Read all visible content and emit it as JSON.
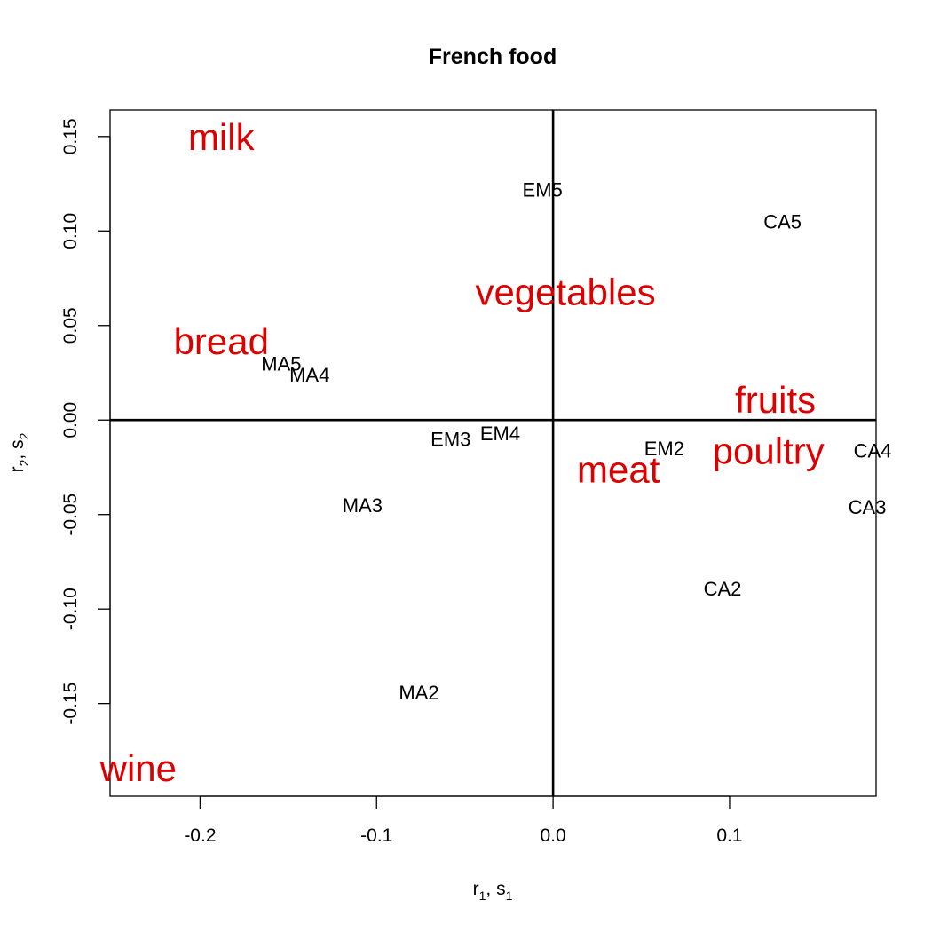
{
  "chart_data": {
    "type": "scatter",
    "title": "French food",
    "xlabel": {
      "r": "r",
      "r_sub": "1",
      "sep": ", ",
      "s": "s",
      "s_sub": "1"
    },
    "ylabel": {
      "r": "r",
      "r_sub": "2",
      "sep": ", ",
      "s": "s",
      "s_sub": "2"
    },
    "xlim": [
      -0.251,
      0.183
    ],
    "ylim": [
      -0.199,
      0.164
    ],
    "x_ticks": [
      -0.2,
      -0.1,
      0.0,
      0.1
    ],
    "x_tick_labels": [
      "-0.2",
      "-0.1",
      "0.0",
      "0.1"
    ],
    "y_ticks": [
      -0.15,
      -0.1,
      -0.05,
      0.0,
      0.05,
      0.1,
      0.15
    ],
    "y_tick_labels": [
      "-0.15",
      "-0.10",
      "-0.05",
      "0.00",
      "0.05",
      "0.10",
      "0.15"
    ],
    "grid": false,
    "reference_lines": {
      "x": 0,
      "y": 0
    },
    "colors": {
      "rows": "#000000",
      "columns": "#dd0000",
      "axes": "#000000"
    },
    "series": [
      {
        "name": "",
        "points": [
          {
            "label": "EM5",
            "x": -0.006,
            "y": 0.122
          },
          {
            "label": "CA5",
            "x": 0.13,
            "y": 0.105
          },
          {
            "label": "MA5",
            "x": -0.154,
            "y": 0.03
          },
          {
            "label": "MA4",
            "x": -0.138,
            "y": 0.024
          },
          {
            "label": "EM3",
            "x": -0.058,
            "y": -0.01
          },
          {
            "label": "EM4",
            "x": -0.03,
            "y": -0.007
          },
          {
            "label": "EM2",
            "x": 0.063,
            "y": -0.015
          },
          {
            "label": "CA4",
            "x": 0.181,
            "y": -0.016
          },
          {
            "label": "CA3",
            "x": 0.178,
            "y": -0.046
          },
          {
            "label": "MA3",
            "x": -0.108,
            "y": -0.045
          },
          {
            "label": "CA2",
            "x": 0.096,
            "y": -0.089
          },
          {
            "label": "MA2",
            "x": -0.076,
            "y": -0.144
          }
        ]
      },
      {
        "name": "",
        "points": [
          {
            "label": "milk",
            "x": -0.188,
            "y": 0.15
          },
          {
            "label": "vegetables",
            "x": 0.007,
            "y": 0.068
          },
          {
            "label": "bread",
            "x": -0.188,
            "y": 0.042
          },
          {
            "label": "fruits",
            "x": 0.126,
            "y": 0.011
          },
          {
            "label": "poultry",
            "x": 0.122,
            "y": -0.016
          },
          {
            "label": "meat",
            "x": 0.037,
            "y": -0.026
          },
          {
            "label": "wine",
            "x": -0.235,
            "y": -0.184
          }
        ]
      }
    ]
  }
}
